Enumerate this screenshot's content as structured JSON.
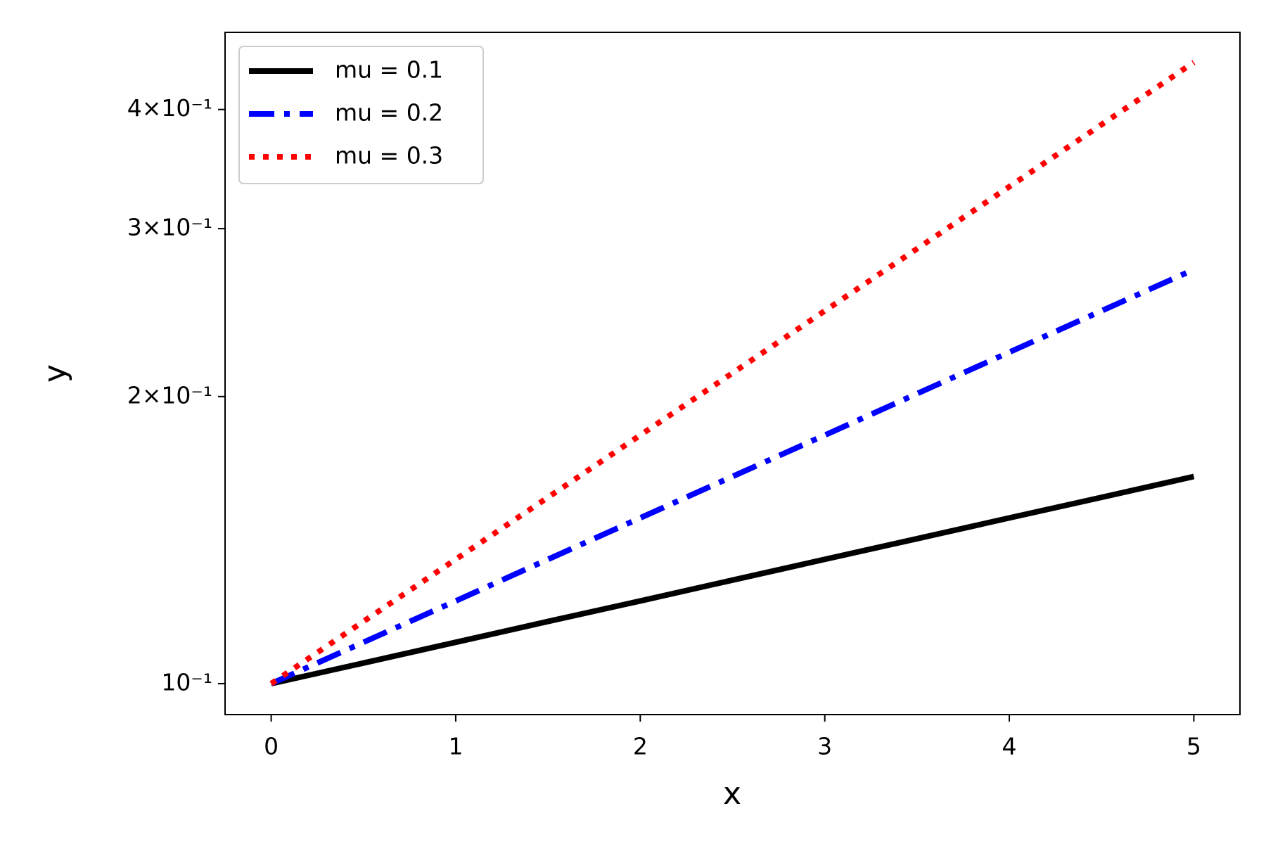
{
  "chart_data": {
    "type": "line",
    "xlabel": "x",
    "ylabel": "y",
    "yscale": "log",
    "x": [
      0,
      0.5,
      1,
      1.5,
      2,
      2.5,
      3,
      3.5,
      4,
      4.5,
      5
    ],
    "series": [
      {
        "name": "mu = 0.1",
        "color": "#000000",
        "linestyle": "solid",
        "values": [
          0.1,
          0.1051,
          0.1105,
          0.1162,
          0.1221,
          0.1284,
          0.135,
          0.1419,
          0.1492,
          0.1568,
          0.1649
        ]
      },
      {
        "name": "mu = 0.2",
        "color": "#0000ff",
        "linestyle": "dashdot",
        "values": [
          0.1,
          0.1105,
          0.1221,
          0.135,
          0.1492,
          0.1649,
          0.1822,
          0.2014,
          0.2226,
          0.246,
          0.2718
        ]
      },
      {
        "name": "mu = 0.3",
        "color": "#ff0000",
        "linestyle": "dotted",
        "values": [
          0.1,
          0.1162,
          0.135,
          0.1568,
          0.1822,
          0.2117,
          0.246,
          0.2858,
          0.332,
          0.3857,
          0.4482
        ]
      }
    ],
    "xlim": [
      -0.25,
      5.25
    ],
    "xticks": [
      0,
      1,
      2,
      3,
      4,
      5
    ],
    "ylim": [
      0.0928,
      0.4819
    ],
    "yticks": [
      {
        "value": 0.1,
        "label": "10⁻¹"
      },
      {
        "value": 0.2,
        "label": "2×10⁻¹"
      },
      {
        "value": 0.3,
        "label": "3×10⁻¹"
      },
      {
        "value": 0.4,
        "label": "4×10⁻¹"
      }
    ],
    "legend": "upper left",
    "grid": false
  }
}
